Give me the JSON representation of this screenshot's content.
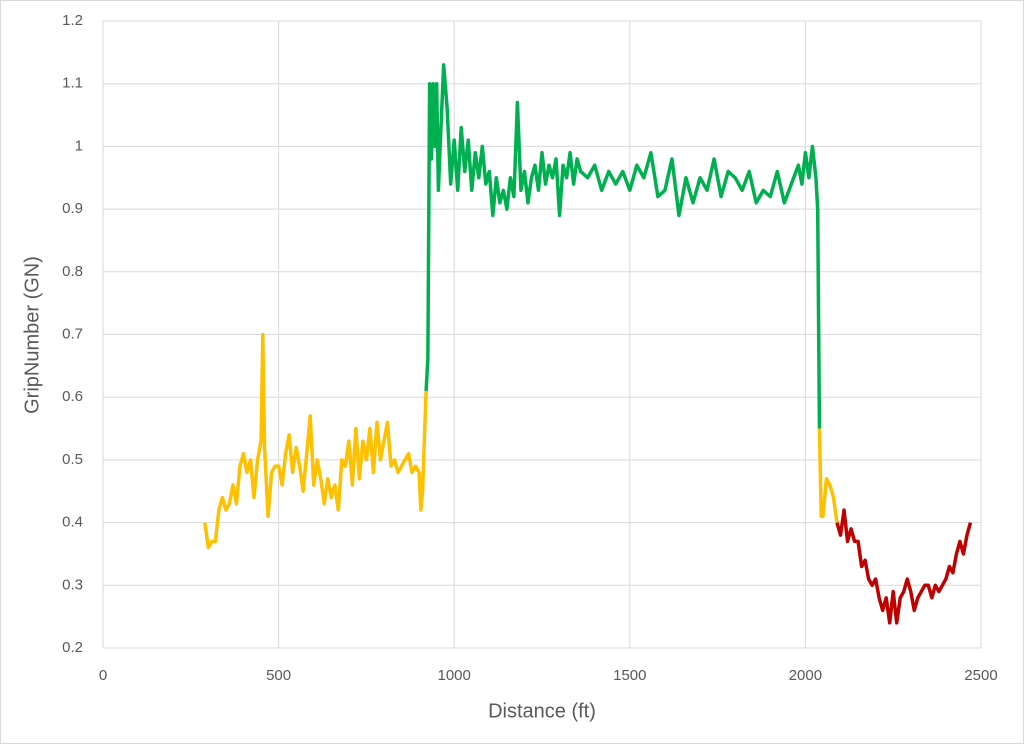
{
  "chart_data": {
    "type": "line",
    "xlabel": "Distance (ft)",
    "ylabel": "GripNumber (GN)",
    "xlim": [
      0,
      2500
    ],
    "xticks": [
      0,
      500,
      1000,
      1500,
      2000,
      2500
    ],
    "ylim": [
      0.2,
      1.2
    ],
    "yticks": [
      0.2,
      0.3,
      0.4,
      0.5,
      0.6,
      0.7,
      0.8,
      0.9,
      1,
      1.1,
      1.2
    ],
    "grid": true,
    "series": [
      {
        "color": "#ffc000",
        "x": [
          290,
          300,
          310,
          320,
          330,
          340,
          350,
          360,
          370,
          380,
          390,
          400,
          410,
          420,
          430,
          440,
          450,
          455,
          460,
          470,
          480,
          490,
          500,
          510,
          520,
          530,
          540,
          550,
          560,
          570,
          580,
          590,
          600,
          610,
          620,
          630,
          640,
          650,
          660,
          670,
          680,
          690,
          700,
          710,
          720,
          730,
          740,
          750,
          760,
          770,
          780,
          790,
          800,
          810,
          820,
          830,
          840,
          850,
          860,
          870,
          880,
          890,
          900,
          905,
          910,
          920
        ],
        "values": [
          0.4,
          0.36,
          0.37,
          0.37,
          0.42,
          0.44,
          0.42,
          0.43,
          0.46,
          0.43,
          0.49,
          0.51,
          0.48,
          0.5,
          0.44,
          0.5,
          0.53,
          0.7,
          0.52,
          0.41,
          0.48,
          0.49,
          0.49,
          0.46,
          0.51,
          0.54,
          0.48,
          0.52,
          0.49,
          0.45,
          0.51,
          0.57,
          0.46,
          0.5,
          0.47,
          0.43,
          0.47,
          0.44,
          0.46,
          0.42,
          0.5,
          0.49,
          0.53,
          0.46,
          0.55,
          0.47,
          0.53,
          0.5,
          0.55,
          0.48,
          0.56,
          0.5,
          0.53,
          0.56,
          0.49,
          0.5,
          0.48,
          0.49,
          0.5,
          0.51,
          0.48,
          0.49,
          0.48,
          0.42,
          0.45,
          0.61
        ]
      },
      {
        "color": "#00b050",
        "x": [
          920,
          925,
          930,
          935,
          940,
          945,
          950,
          955,
          960,
          970,
          980,
          990,
          1000,
          1010,
          1020,
          1030,
          1040,
          1050,
          1060,
          1070,
          1080,
          1090,
          1100,
          1110,
          1120,
          1130,
          1140,
          1150,
          1160,
          1170,
          1180,
          1190,
          1200,
          1210,
          1220,
          1230,
          1240,
          1250,
          1260,
          1270,
          1280,
          1290,
          1300,
          1310,
          1320,
          1330,
          1340,
          1350,
          1360,
          1380,
          1400,
          1420,
          1440,
          1460,
          1480,
          1500,
          1520,
          1540,
          1560,
          1580,
          1600,
          1620,
          1640,
          1660,
          1680,
          1700,
          1720,
          1740,
          1760,
          1780,
          1800,
          1820,
          1840,
          1860,
          1880,
          1900,
          1920,
          1940,
          1960,
          1980,
          1990,
          2000,
          2010,
          2020,
          2030,
          2035,
          2040
        ],
        "values": [
          0.61,
          0.66,
          1.1,
          0.98,
          1.1,
          1.0,
          1.1,
          0.93,
          1.0,
          1.13,
          1.06,
          0.94,
          1.01,
          0.93,
          1.03,
          0.96,
          1.01,
          0.93,
          0.99,
          0.95,
          1.0,
          0.94,
          0.96,
          0.89,
          0.95,
          0.91,
          0.93,
          0.9,
          0.95,
          0.92,
          1.07,
          0.93,
          0.96,
          0.91,
          0.95,
          0.97,
          0.93,
          0.99,
          0.94,
          0.97,
          0.95,
          0.98,
          0.89,
          0.97,
          0.95,
          0.99,
          0.94,
          0.98,
          0.96,
          0.95,
          0.97,
          0.93,
          0.96,
          0.94,
          0.96,
          0.93,
          0.97,
          0.95,
          0.99,
          0.92,
          0.93,
          0.98,
          0.89,
          0.95,
          0.91,
          0.95,
          0.93,
          0.98,
          0.92,
          0.96,
          0.95,
          0.93,
          0.96,
          0.91,
          0.93,
          0.92,
          0.96,
          0.91,
          0.94,
          0.97,
          0.94,
          0.99,
          0.95,
          1.0,
          0.95,
          0.9,
          0.55
        ]
      },
      {
        "color": "#ffc000",
        "x": [
          2040,
          2045,
          2050,
          2060,
          2070,
          2080,
          2090
        ],
        "values": [
          0.55,
          0.41,
          0.41,
          0.47,
          0.46,
          0.44,
          0.4
        ]
      },
      {
        "color": "#c00000",
        "x": [
          2090,
          2100,
          2110,
          2120,
          2130,
          2140,
          2150,
          2160,
          2170,
          2180,
          2190,
          2200,
          2210,
          2220,
          2230,
          2240,
          2250,
          2260,
          2270,
          2280,
          2290,
          2300,
          2310,
          2320,
          2330,
          2340,
          2350,
          2360,
          2370,
          2380,
          2390,
          2400,
          2410,
          2420,
          2430,
          2440,
          2450,
          2460,
          2470
        ],
        "values": [
          0.4,
          0.38,
          0.42,
          0.37,
          0.39,
          0.37,
          0.37,
          0.33,
          0.34,
          0.31,
          0.3,
          0.31,
          0.28,
          0.26,
          0.28,
          0.24,
          0.29,
          0.24,
          0.28,
          0.29,
          0.31,
          0.29,
          0.26,
          0.28,
          0.29,
          0.3,
          0.3,
          0.28,
          0.3,
          0.29,
          0.3,
          0.31,
          0.33,
          0.32,
          0.35,
          0.37,
          0.35,
          0.38,
          0.4
        ]
      }
    ]
  }
}
